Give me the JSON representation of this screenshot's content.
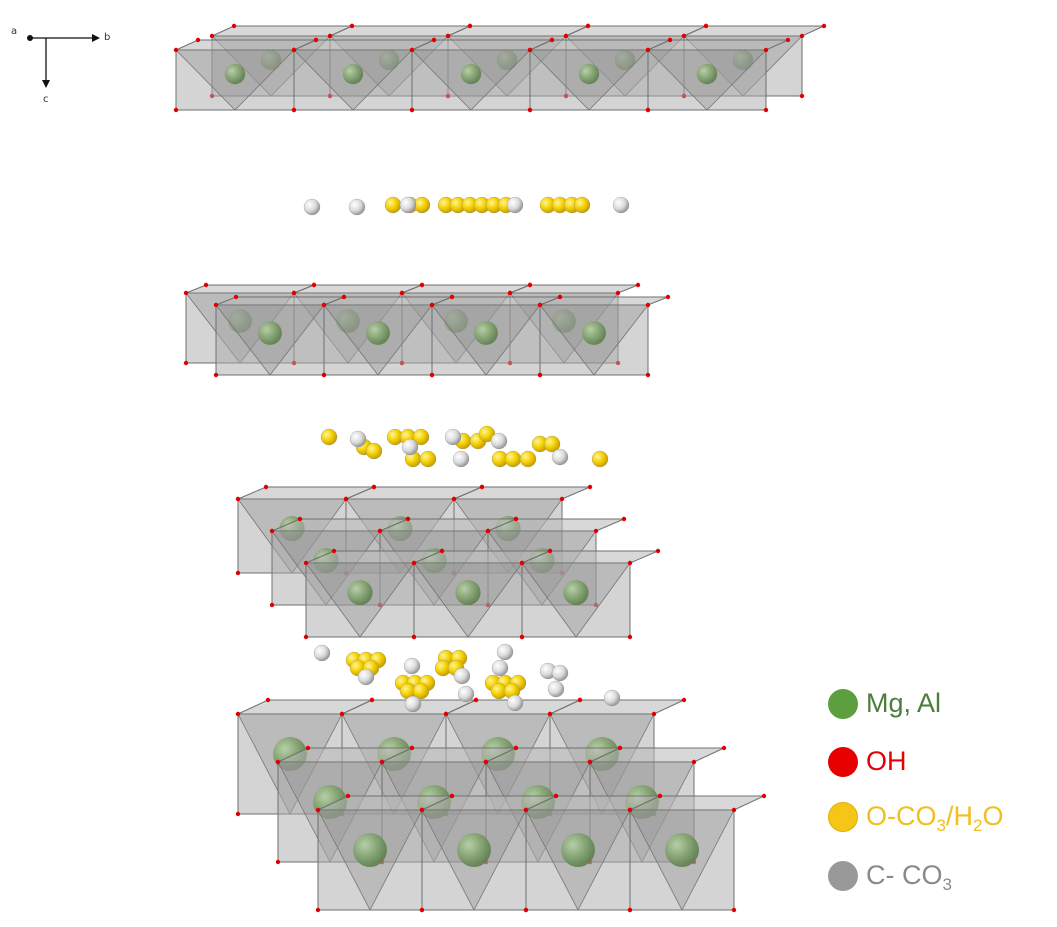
{
  "axes": {
    "a": "a",
    "b": "b",
    "c": "c"
  },
  "legend": [
    {
      "id": "metal",
      "label": "Mg, Al",
      "color": "#5d9e3f",
      "text_color": "#4d7d3a"
    },
    {
      "id": "oh",
      "label": "OH",
      "color": "#e60000",
      "text_color": "#e60000"
    },
    {
      "id": "o",
      "label": "O-CO",
      "sub1": "3",
      "mid": "/H",
      "sub2": "2",
      "tail": "O",
      "color": "#f5c518",
      "text_color": "#f0c020"
    },
    {
      "id": "c",
      "label": "C- CO",
      "sub1": "3",
      "color": "#999999",
      "text_color": "#8a8a8a"
    }
  ],
  "colors": {
    "octahedron_fill": "#b8b8b8",
    "octahedron_edge": "#6f6f6f",
    "metal": "#7da06a",
    "hydroxyl": "#e00000",
    "oxygen": "#f5cf00",
    "carbon": "#dcdcdc"
  }
}
